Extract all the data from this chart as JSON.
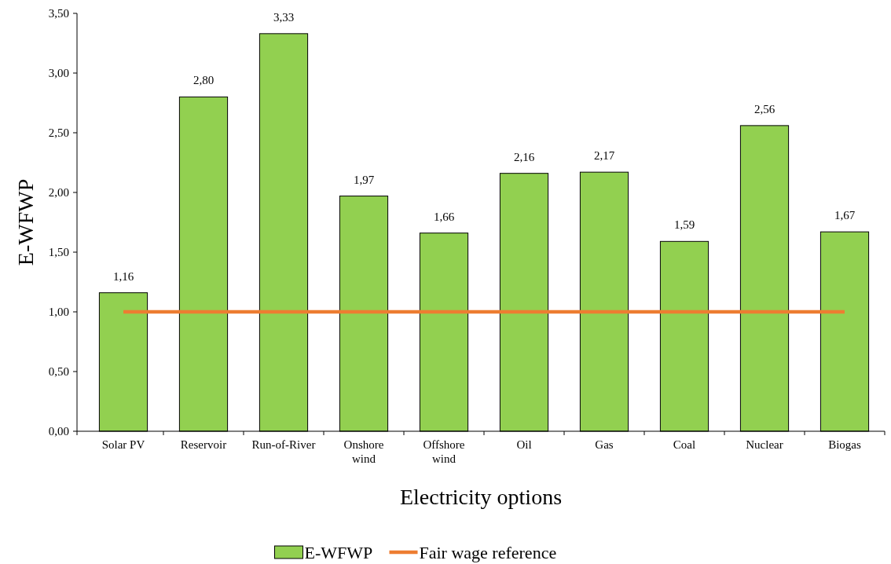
{
  "chart_data": {
    "type": "bar",
    "xlabel": "Electricity options",
    "ylabel": "E-WFWP",
    "categories": [
      "Solar PV",
      "Reservoir",
      "Run-of-River",
      "Onshore wind",
      "Offshore wind",
      "Oil",
      "Gas",
      "Coal",
      "Nuclear",
      "Biogas"
    ],
    "series": [
      {
        "name": "E-WFWP",
        "color": "#92d050",
        "values": [
          1.16,
          2.8,
          3.33,
          1.97,
          1.66,
          2.16,
          2.17,
          1.59,
          2.56,
          1.67
        ],
        "value_labels": [
          "1,16",
          "2,80",
          "3,33",
          "1,97",
          "1,66",
          "2,16",
          "2,17",
          "1,59",
          "2,56",
          "1,67"
        ]
      },
      {
        "name": "Fair wage reference",
        "type": "line",
        "color": "#ed7d31",
        "values": [
          1,
          1,
          1,
          1,
          1,
          1,
          1,
          1,
          1,
          1
        ]
      }
    ],
    "ylim": [
      0,
      3.5
    ],
    "yticks": [
      {
        "value": 0,
        "label": "0,00"
      },
      {
        "value": 0.5,
        "label": "0,50"
      },
      {
        "value": 1,
        "label": "1,00"
      },
      {
        "value": 1.5,
        "label": "1,50"
      },
      {
        "value": 2,
        "label": "2,00"
      },
      {
        "value": 2.5,
        "label": "2,50"
      },
      {
        "value": 3,
        "label": "3,00"
      },
      {
        "value": 3.5,
        "label": "3,50"
      }
    ],
    "grid": false,
    "legend": "bottom"
  }
}
